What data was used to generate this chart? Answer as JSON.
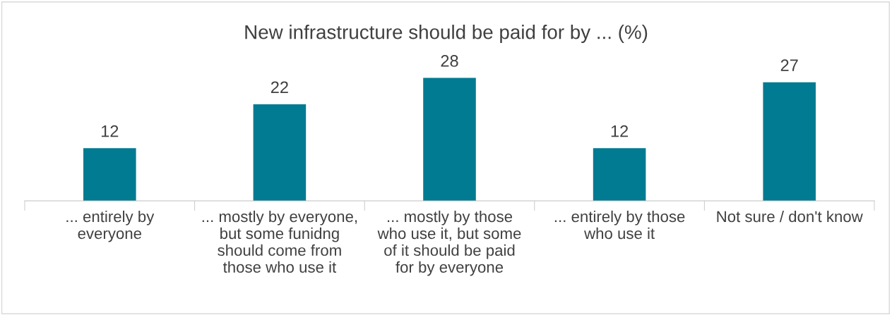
{
  "chart_data": {
    "type": "bar",
    "title": "New infrastructure should be paid for by ... (%)",
    "categories": [
      "... entirely by\neveryone",
      "... mostly by everyone,\nbut some funidng\nshould come from\nthose who use it",
      "... mostly by those\nwho use it, but some\nof it should be paid\nfor by everyone",
      "... entirely by those\nwho use it",
      "Not sure / don't know"
    ],
    "values": [
      12,
      22,
      28,
      12,
      27
    ],
    "color": "#007b91",
    "data_labels": true,
    "grid": false,
    "legend": false
  }
}
